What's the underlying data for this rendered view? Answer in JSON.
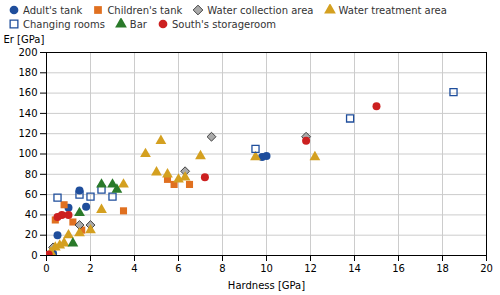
{
  "chart_data": {
    "type": "scatter",
    "xlabel": "Hardness [GPa]",
    "ylabel": "Er [GPa]",
    "xlim": [
      0,
      20
    ],
    "ylim": [
      0,
      200
    ],
    "xticks": [
      0,
      2,
      4,
      6,
      8,
      10,
      12,
      14,
      16,
      18,
      20
    ],
    "yticks": [
      0,
      20,
      40,
      60,
      80,
      100,
      120,
      140,
      160,
      180,
      200
    ],
    "grid": true,
    "legend": "top",
    "series": [
      {
        "name": "Adult's tank",
        "color": "#1f4e9c",
        "marker": "circle",
        "x": [
          0.3,
          0.5,
          1.0,
          1.5,
          1.8,
          9.8,
          10.0
        ],
        "values": [
          2,
          20,
          47,
          64,
          48,
          97,
          98
        ]
      },
      {
        "name": "Children's tank",
        "color": "#e07020",
        "marker": "square",
        "x": [
          0.4,
          0.8,
          1.2,
          1.6,
          3.5,
          5.5,
          5.8,
          6.5
        ],
        "values": [
          35,
          50,
          33,
          25,
          44,
          75,
          70,
          70
        ]
      },
      {
        "name": "Water collection area",
        "color": "#aaaaaa",
        "marker": "diamond",
        "x": [
          0.3,
          1.5,
          2.0,
          6.3,
          7.5,
          11.8
        ],
        "values": [
          8,
          30,
          30,
          83,
          117,
          117
        ]
      },
      {
        "name": "Water treatment area",
        "color": "#d4a020",
        "marker": "triangle",
        "x": [
          0.2,
          0.4,
          0.6,
          0.8,
          1.0,
          1.5,
          2.0,
          2.5,
          3.5,
          4.5,
          5.0,
          5.2,
          5.5,
          6.0,
          6.3,
          7.0,
          9.5,
          12.2
        ],
        "values": [
          3,
          8,
          10,
          12,
          20,
          22,
          25,
          45,
          70,
          100,
          82,
          113,
          80,
          75,
          77,
          98,
          97,
          97
        ]
      },
      {
        "name": "Changing rooms",
        "color": "#1f4e9c",
        "marker": "hollow_square",
        "x": [
          0.5,
          1.5,
          2.0,
          2.5,
          3.0,
          9.5,
          13.8,
          18.5
        ],
        "values": [
          57,
          60,
          58,
          65,
          58,
          105,
          135,
          161
        ]
      },
      {
        "name": "Bar",
        "color": "#2a7a2a",
        "marker": "triangle",
        "x": [
          1.2,
          1.5,
          2.5,
          3.0,
          3.2
        ],
        "values": [
          12,
          42,
          70,
          70,
          65
        ]
      },
      {
        "name": "South's storageroom",
        "color": "#cc2020",
        "marker": "circle",
        "x": [
          0.1,
          0.5,
          0.7,
          1.0,
          7.2,
          11.8,
          15.0
        ],
        "values": [
          1,
          38,
          40,
          40,
          77,
          113,
          147
        ]
      }
    ]
  }
}
